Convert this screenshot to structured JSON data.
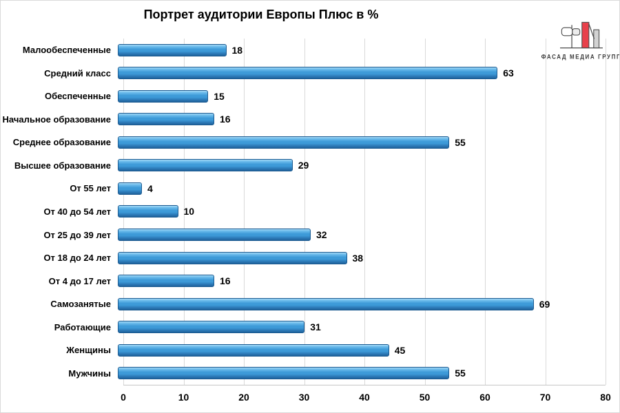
{
  "chart_data": {
    "type": "bar",
    "orientation": "horizontal",
    "title": "Портрет аудитории Европы Плюс в %",
    "categories": [
      "Малообеспеченные",
      "Средний класс",
      "Обеспеченные",
      "Начальное образование",
      "Среднее образование",
      "Высшее образование",
      "От 55 лет",
      "От 40 до 54 лет",
      "От 25 до 39 лет",
      "От 18 до 24 лет",
      "От 4 до 17 лет",
      "Самозанятые",
      "Работающие",
      "Женщины",
      "Мужчины"
    ],
    "values": [
      18,
      63,
      15,
      16,
      55,
      29,
      4,
      10,
      32,
      38,
      16,
      69,
      31,
      45,
      55
    ],
    "xlabel": "",
    "ylabel": "",
    "xlim": [
      0,
      80
    ],
    "xticks": [
      0,
      10,
      20,
      30,
      40,
      50,
      60,
      70,
      80
    ],
    "grid": true,
    "legend": false,
    "value_labels": true
  },
  "logo": {
    "text": "ФАСАД МЕДИА ГРУПП"
  },
  "colors": {
    "bar_top_highlight": "#a6d8f5",
    "bar_main": "#3d9ad8",
    "bar_bottom": "#2d7ab8",
    "bar_border": "#1b5a90",
    "grid_line": "#d9d9d9",
    "axis_line": "#c6c6c6",
    "border": "#d9d9d9",
    "logo_red": "#e8414b",
    "logo_gray": "#d2d2d2",
    "logo_outline": "#4a4a4a",
    "logo_text": "#3a3a3a"
  }
}
